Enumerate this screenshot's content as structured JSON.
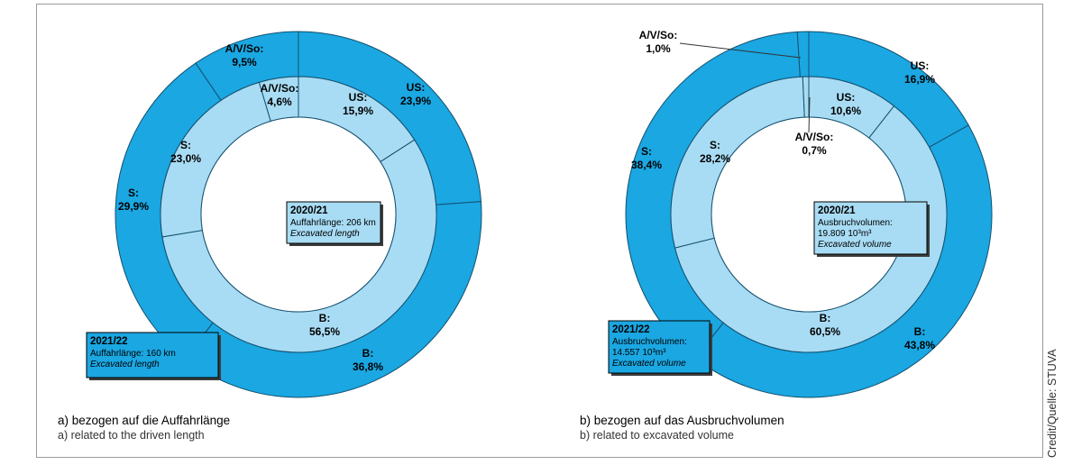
{
  "charts": [
    {
      "type": "pie",
      "caption_de": "a) bezogen auf die Auffahrlänge",
      "caption_en": "a) related to the driven length",
      "inner": {
        "year": "2020/21",
        "line1": "Auffahrlänge: 206 km",
        "line2": "Excavated length",
        "slices": [
          {
            "label": "US:",
            "value": 15.9,
            "text": "15,9%"
          },
          {
            "label": "B:",
            "value": 56.5,
            "text": "56,5%"
          },
          {
            "label": "S:",
            "value": 23.0,
            "text": "23,0%"
          },
          {
            "label": "A/V/So:",
            "value": 4.6,
            "text": "4,6%"
          }
        ]
      },
      "outer": {
        "year": "2021/22",
        "line1": "Auffahrlänge: 160 km",
        "line2": "Excavated length",
        "slices": [
          {
            "label": "US:",
            "value": 23.9,
            "text": "23,9%"
          },
          {
            "label": "B:",
            "value": 36.8,
            "text": "36,8%"
          },
          {
            "label": "S:",
            "value": 29.9,
            "text": "29,9%"
          },
          {
            "label": "A/V/So:",
            "value": 9.5,
            "text": "9,5%"
          }
        ]
      }
    },
    {
      "type": "pie",
      "caption_de": "b) bezogen auf das Ausbruchvolumen",
      "caption_en": "b) related to excavated volume",
      "inner": {
        "year": "2020/21",
        "line1": "Ausbruchvolumen:",
        "line1b": "19.809 10³m³",
        "line2": "Excavated volume",
        "slices": [
          {
            "label": "US:",
            "value": 10.6,
            "text": "10,6%"
          },
          {
            "label": "B:",
            "value": 60.5,
            "text": "60,5%"
          },
          {
            "label": "S:",
            "value": 28.2,
            "text": "28,2%"
          },
          {
            "label": "A/V/So:",
            "value": 0.7,
            "text": "0,7%"
          }
        ]
      },
      "outer": {
        "year": "2021/22",
        "line1": "Ausbruchvolumen:",
        "line1b": "14.557 10³m³",
        "line2": "Excavated volume",
        "slices": [
          {
            "label": "US:",
            "value": 16.9,
            "text": "16,9%"
          },
          {
            "label": "B:",
            "value": 43.8,
            "text": "43,8%"
          },
          {
            "label": "S:",
            "value": 38.4,
            "text": "38,4%"
          },
          {
            "label": "A/V/So:",
            "value": 1.0,
            "text": "1,0%"
          }
        ]
      }
    }
  ],
  "credit": "Credit/Quelle: STUVA",
  "colors": {
    "outer": "#1aa7e2",
    "inner": "#a8dcf4",
    "stroke": "#14506e",
    "box_border": "#000000"
  },
  "chart_data": [
    {
      "type": "pie",
      "title": "a) bezogen auf die Auffahrlänge",
      "series": [
        {
          "name": "2020/21",
          "categories": [
            "US",
            "B",
            "S",
            "A/V/So"
          ],
          "values": [
            15.9,
            56.5,
            23.0,
            4.6
          ]
        },
        {
          "name": "2021/22",
          "categories": [
            "US",
            "B",
            "S",
            "A/V/So"
          ],
          "values": [
            23.9,
            36.8,
            29.9,
            9.5
          ]
        }
      ]
    },
    {
      "type": "pie",
      "title": "b) bezogen auf das Ausbruchvolumen",
      "series": [
        {
          "name": "2020/21",
          "categories": [
            "US",
            "B",
            "S",
            "A/V/So"
          ],
          "values": [
            10.6,
            60.5,
            28.2,
            0.7
          ]
        },
        {
          "name": "2021/22",
          "categories": [
            "US",
            "B",
            "S",
            "A/V/So"
          ],
          "values": [
            16.9,
            43.8,
            38.4,
            1.0
          ]
        }
      ]
    }
  ]
}
